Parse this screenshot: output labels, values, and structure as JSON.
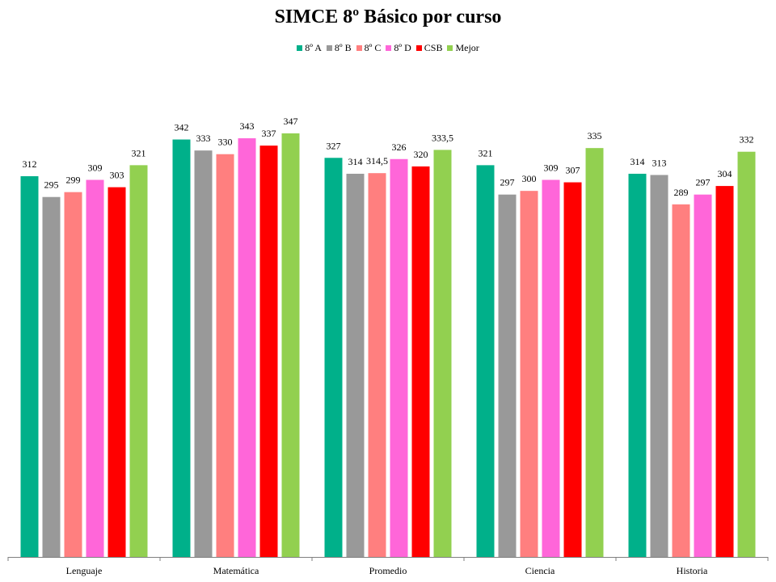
{
  "chart_data": {
    "type": "bar",
    "title": "SIMCE 8º Básico por curso",
    "categories": [
      "Lenguaje",
      "Matemática",
      "Promedio",
      "Ciencia",
      "Historia"
    ],
    "series": [
      {
        "name": "8º A",
        "color": "#00B08A",
        "values": [
          312,
          342,
          327,
          321,
          314
        ],
        "labels": [
          "312",
          "342",
          "327",
          "321",
          "314"
        ]
      },
      {
        "name": "8º B",
        "color": "#999999",
        "values": [
          295,
          333,
          314,
          297,
          313
        ],
        "labels": [
          "295",
          "333",
          "314",
          "297",
          "313"
        ]
      },
      {
        "name": "8º C",
        "color": "#FF7F7F",
        "values": [
          299,
          330,
          314.5,
          300,
          289
        ],
        "labels": [
          "299",
          "330",
          "314,5",
          "300",
          "289"
        ]
      },
      {
        "name": "8º D",
        "color": "#FF66D9",
        "values": [
          309,
          343,
          326,
          309,
          297
        ],
        "labels": [
          "309",
          "343",
          "326",
          "309",
          "297"
        ]
      },
      {
        "name": "CSB",
        "color": "#FF0000",
        "values": [
          303,
          337,
          320,
          307,
          304
        ],
        "labels": [
          "303",
          "337",
          "320",
          "307",
          "304"
        ]
      },
      {
        "name": "Mejor",
        "color": "#92D050",
        "values": [
          321,
          347,
          333.5,
          335,
          332
        ],
        "labels": [
          "321",
          "347",
          "333,5",
          "335",
          "332"
        ]
      }
    ],
    "xlabel": "",
    "ylabel": "",
    "grid": false,
    "legend": "top"
  }
}
